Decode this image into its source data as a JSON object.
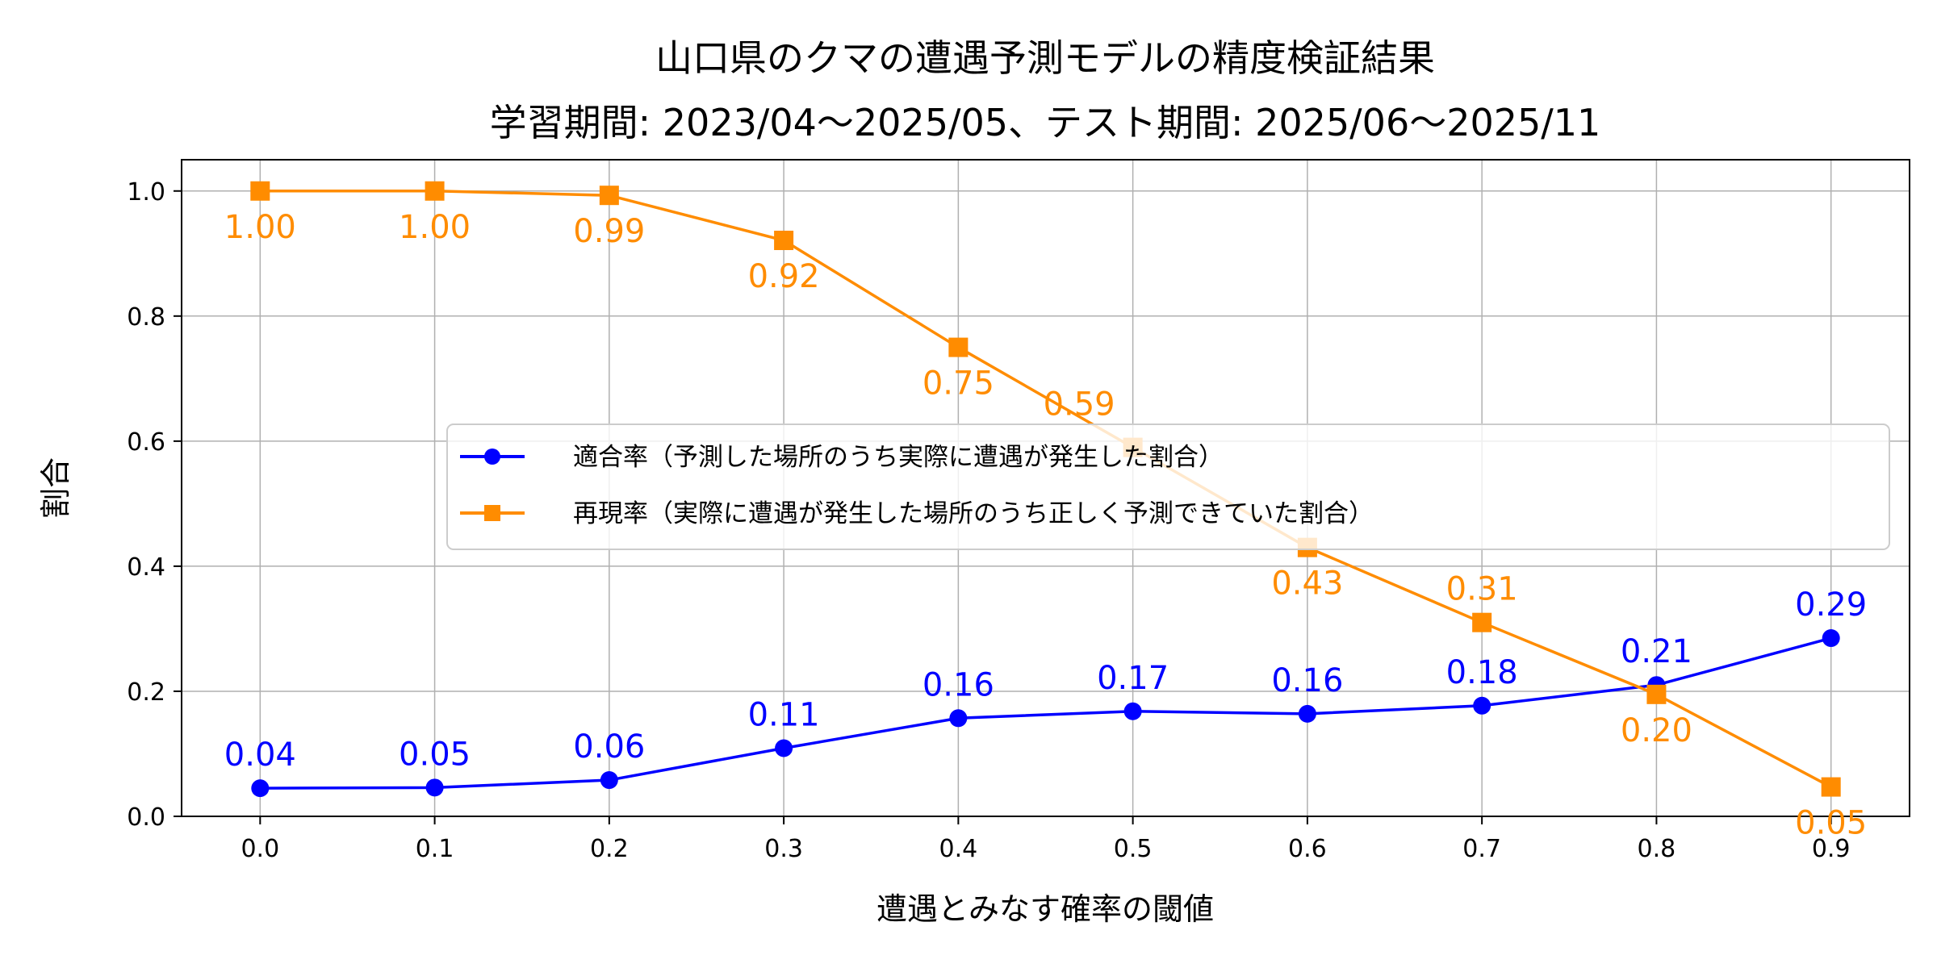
{
  "chart_data": {
    "type": "line",
    "title": "山口県のクマの遭遇予測モデルの精度検証結果",
    "subtitle": "学習期間: 2023/04〜2025/05、テスト期間: 2025/06〜2025/11",
    "xlabel": "遭遇とみなす確率の閾値",
    "ylabel": "割合",
    "x": [
      0.0,
      0.1,
      0.2,
      0.3,
      0.4,
      0.5,
      0.6,
      0.7,
      0.8,
      0.9
    ],
    "xlim": [
      -0.045,
      0.945
    ],
    "ylim": [
      0,
      1.05
    ],
    "xticks": [
      "0.0",
      "0.1",
      "0.2",
      "0.3",
      "0.4",
      "0.5",
      "0.6",
      "0.7",
      "0.8",
      "0.9"
    ],
    "yticks": [
      "0.0",
      "0.2",
      "0.4",
      "0.6",
      "0.8",
      "1.0"
    ],
    "grid": true,
    "legend_position": "center-right",
    "series": [
      {
        "name": "適合率（予測した場所のうち実際に遭遇が発生した割合）",
        "color": "#0000ff",
        "marker": "circle",
        "values": [
          0.045,
          0.046,
          0.058,
          0.109,
          0.157,
          0.168,
          0.164,
          0.177,
          0.21,
          0.285
        ],
        "labels": [
          "0.04",
          "0.05",
          "0.06",
          "0.11",
          "0.16",
          "0.17",
          "0.16",
          "0.18",
          "0.21",
          "0.29"
        ],
        "label_position": "above"
      },
      {
        "name": "再現率（実際に遭遇が発生した場所のうち正しく予測できていた割合）",
        "color": "#ff8c00",
        "marker": "square",
        "values": [
          1.0,
          1.0,
          0.993,
          0.921,
          0.75,
          0.59,
          0.43,
          0.31,
          0.195,
          0.047
        ],
        "labels": [
          "1.00",
          "1.00",
          "0.99",
          "0.92",
          "0.75",
          "0.59",
          "0.43",
          "0.31",
          "0.20",
          "0.05"
        ],
        "label_position": "below"
      }
    ]
  }
}
